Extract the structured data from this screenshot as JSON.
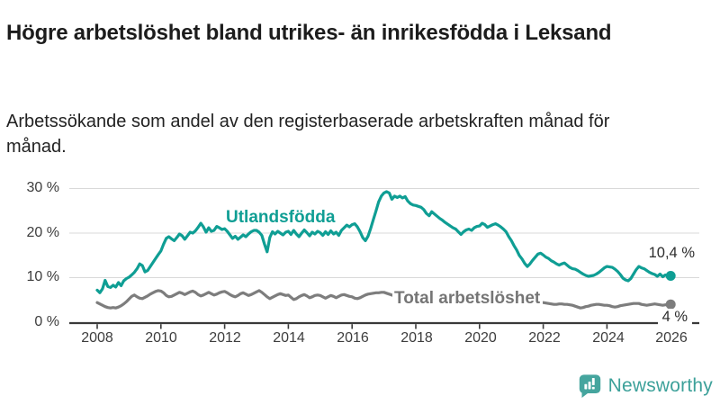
{
  "header": {
    "title": "Högre arbetslöshet bland utrikes- än inrikesfödda i Leksand",
    "subtitle": "Arbetssökande som andel av den registerbaserade arbetskraften månad för månad."
  },
  "footer": {
    "brand": "Newsworthy",
    "logo_icon": "bar-chart-speech-bubble"
  },
  "colors": {
    "accent_teal": "#0f9e94",
    "line_gray": "#7d7d7d",
    "grid": "#d9d9d9",
    "axis": "#3a3a3a",
    "logo_teal": "#3da19a"
  },
  "chart_data": {
    "type": "line",
    "title": "Högre arbetslöshet bland utrikes- än inrikesfödda i Leksand",
    "subtitle": "Arbetssökande som andel av den registerbaserade arbetskraften månad för månad.",
    "grid": "horizontal",
    "legend_position": "inline-labels",
    "ylim": [
      0,
      30
    ],
    "x_start_year": 2008,
    "points_per_year": 12,
    "x_ticks": [
      "2008",
      "2010",
      "2012",
      "2014",
      "2016",
      "2018",
      "2020",
      "2022",
      "2024",
      "2026"
    ],
    "y_ticks": [
      {
        "value": 0,
        "label": "0 %"
      },
      {
        "value": 10,
        "label": "10 %"
      },
      {
        "value": 20,
        "label": "20 %"
      },
      {
        "value": 30,
        "label": "30 %"
      }
    ],
    "series": [
      {
        "name": "Utlandsfödda",
        "color": "#0f9e94",
        "end_label": "10,4 %",
        "end_value": 10.4,
        "values": [
          7.2,
          6.6,
          7.5,
          9.4,
          8.0,
          7.8,
          8.3,
          7.9,
          8.9,
          8.2,
          9.3,
          9.8,
          10.1,
          10.6,
          11.2,
          12.0,
          13.1,
          12.7,
          11.3,
          11.6,
          12.5,
          13.4,
          14.3,
          15.2,
          16.0,
          17.5,
          18.8,
          19.2,
          18.7,
          18.3,
          19.0,
          19.8,
          19.4,
          18.6,
          19.4,
          20.2,
          20.0,
          20.5,
          21.3,
          22.2,
          21.4,
          20.2,
          21.2,
          20.4,
          20.6,
          21.5,
          21.2,
          20.8,
          21.0,
          20.4,
          19.6,
          18.8,
          19.3,
          18.6,
          19.1,
          19.6,
          19.2,
          19.8,
          20.3,
          20.6,
          20.6,
          20.2,
          19.5,
          17.5,
          15.8,
          19.0,
          20.3,
          19.8,
          20.4,
          20.0,
          19.6,
          20.2,
          20.4,
          19.7,
          20.6,
          19.8,
          19.2,
          20.0,
          20.7,
          20.1,
          19.4,
          20.2,
          19.8,
          20.4,
          20.1,
          19.5,
          20.3,
          19.7,
          20.5,
          19.8,
          20.2,
          19.5,
          20.6,
          21.2,
          21.8,
          21.4,
          21.9,
          22.1,
          21.4,
          20.3,
          19.0,
          18.3,
          19.3,
          21.0,
          23.0,
          25.0,
          27.0,
          28.3,
          29.0,
          29.3,
          29.0,
          27.6,
          28.3,
          28.0,
          28.3,
          27.9,
          28.2,
          27.2,
          26.6,
          26.3,
          26.2,
          26.0,
          25.8,
          25.3,
          24.4,
          23.9,
          24.8,
          24.3,
          23.8,
          23.3,
          22.9,
          22.4,
          22.0,
          21.6,
          21.2,
          20.9,
          20.3,
          19.7,
          20.3,
          20.7,
          20.9,
          20.6,
          21.2,
          21.5,
          21.6,
          22.2,
          21.9,
          21.3,
          21.6,
          21.9,
          22.1,
          21.8,
          21.4,
          20.9,
          20.3,
          19.2,
          18.3,
          17.2,
          16.2,
          15.0,
          14.2,
          13.2,
          12.5,
          13.1,
          13.9,
          14.6,
          15.3,
          15.5,
          15.1,
          14.6,
          14.3,
          13.8,
          13.5,
          13.1,
          12.8,
          13.1,
          13.3,
          12.8,
          12.3,
          12.0,
          11.9,
          11.6,
          11.2,
          10.8,
          10.5,
          10.3,
          10.4,
          10.5,
          10.8,
          11.2,
          11.7,
          12.2,
          12.5,
          12.4,
          12.3,
          11.9,
          11.4,
          10.7,
          9.9,
          9.5,
          9.3,
          9.8,
          10.8,
          11.8,
          12.5,
          12.2,
          12.0,
          11.6,
          11.2,
          10.9,
          10.7,
          10.3,
          10.8,
          10.2,
          10.6,
          10.3,
          10.4
        ]
      },
      {
        "name": "Total arbetslöshet",
        "color": "#7d7d7d",
        "end_label": "4 %",
        "end_value": 4.0,
        "values": [
          4.4,
          4.1,
          3.8,
          3.5,
          3.3,
          3.2,
          3.3,
          3.2,
          3.4,
          3.7,
          4.1,
          4.6,
          5.2,
          5.8,
          6.1,
          5.7,
          5.4,
          5.3,
          5.6,
          5.9,
          6.3,
          6.6,
          6.9,
          7.1,
          7.0,
          6.6,
          6.0,
          5.7,
          5.8,
          6.1,
          6.4,
          6.7,
          6.5,
          6.2,
          6.5,
          6.8,
          7.0,
          6.7,
          6.2,
          5.9,
          6.1,
          6.4,
          6.7,
          6.4,
          6.1,
          6.3,
          6.6,
          6.8,
          6.9,
          6.6,
          6.2,
          5.9,
          5.7,
          6.0,
          6.4,
          6.6,
          6.3,
          6.0,
          6.2,
          6.5,
          6.8,
          7.1,
          6.7,
          6.2,
          5.7,
          5.3,
          5.6,
          5.9,
          6.2,
          6.4,
          6.2,
          6.0,
          6.1,
          5.6,
          5.1,
          5.3,
          5.7,
          6.0,
          6.2,
          5.9,
          5.5,
          5.7,
          6.0,
          6.1,
          6.0,
          5.7,
          5.4,
          5.7,
          6.0,
          5.8,
          5.5,
          5.8,
          6.1,
          6.2,
          6.0,
          5.8,
          5.7,
          5.4,
          5.3,
          5.5,
          5.8,
          6.1,
          6.3,
          6.4,
          6.5,
          6.6,
          6.6,
          6.7,
          6.7,
          6.5,
          6.3,
          6.1,
          5.9,
          5.8,
          5.9,
          6.0,
          5.9,
          5.8,
          5.7,
          5.6,
          5.6,
          5.5,
          5.4,
          5.3,
          5.2,
          5.2,
          5.3,
          5.3,
          5.2,
          5.1,
          5.1,
          5.0,
          5.0,
          5.0,
          4.9,
          4.8,
          4.8,
          4.9,
          5.0,
          5.0,
          4.9,
          4.9,
          5.0,
          5.1,
          5.2,
          5.4,
          5.7,
          6.1,
          6.4,
          6.5,
          6.6,
          6.5,
          6.3,
          6.1,
          5.9,
          5.8,
          5.7,
          5.6,
          5.4,
          5.2,
          5.0,
          4.9,
          4.9,
          4.8,
          4.7,
          4.6,
          4.5,
          4.4,
          4.4,
          4.3,
          4.2,
          4.1,
          4.0,
          4.0,
          4.1,
          4.1,
          4.0,
          4.0,
          3.9,
          3.8,
          3.6,
          3.4,
          3.2,
          3.3,
          3.5,
          3.6,
          3.8,
          3.9,
          4.0,
          4.0,
          3.9,
          3.8,
          3.8,
          3.7,
          3.5,
          3.4,
          3.5,
          3.7,
          3.8,
          3.9,
          4.0,
          4.1,
          4.2,
          4.2,
          4.2,
          4.0,
          3.9,
          3.8,
          3.9,
          4.0,
          4.1,
          4.0,
          3.9,
          3.8,
          3.9,
          4.0,
          4.0
        ]
      }
    ]
  }
}
